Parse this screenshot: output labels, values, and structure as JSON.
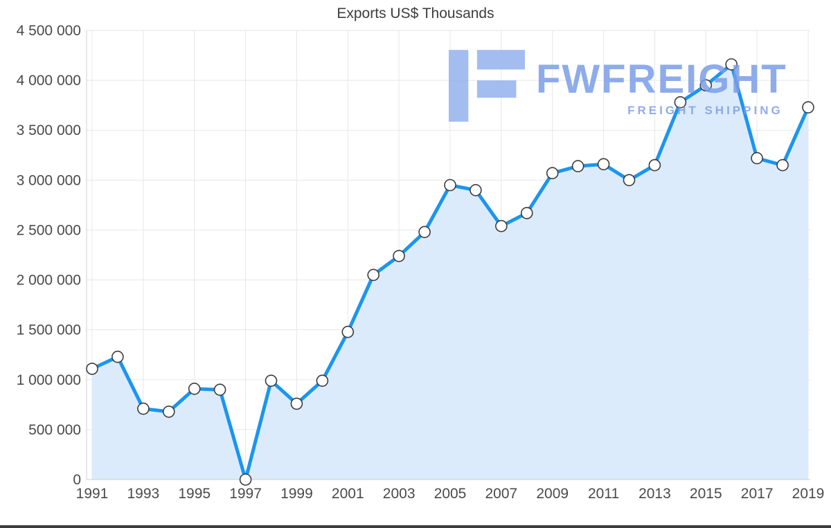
{
  "chart": {
    "title": "Exports US$ Thousands",
    "watermark": {
      "brand": "FWFREIGHT",
      "tagline": "FREIGHT SHIPPING"
    }
  },
  "chart_data": {
    "type": "area",
    "title": "Exports US$ Thousands",
    "xlabel": "",
    "ylabel": "",
    "x": [
      1991,
      1992,
      1993,
      1994,
      1995,
      1996,
      1997,
      1998,
      1999,
      2000,
      2001,
      2002,
      2003,
      2004,
      2005,
      2006,
      2007,
      2008,
      2009,
      2010,
      2011,
      2012,
      2013,
      2014,
      2015,
      2016,
      2017,
      2018,
      2019
    ],
    "values": [
      1110000,
      1230000,
      710000,
      680000,
      910000,
      900000,
      0,
      990000,
      760000,
      990000,
      1480000,
      2050000,
      2240000,
      2480000,
      2950000,
      2900000,
      2540000,
      2670000,
      3070000,
      3140000,
      3160000,
      3000000,
      3150000,
      3780000,
      3950000,
      4160000,
      3220000,
      3150000,
      3730000
    ],
    "xticks": [
      1991,
      1993,
      1995,
      1997,
      1999,
      2001,
      2003,
      2005,
      2007,
      2009,
      2011,
      2013,
      2015,
      2017,
      2019
    ],
    "ylim": [
      0,
      4500000
    ],
    "ytick_step": 500000,
    "grid": true,
    "legend": "none",
    "line_color": "#1b95ef",
    "fill_color": "#dcebfb",
    "marker": "white-circle"
  }
}
